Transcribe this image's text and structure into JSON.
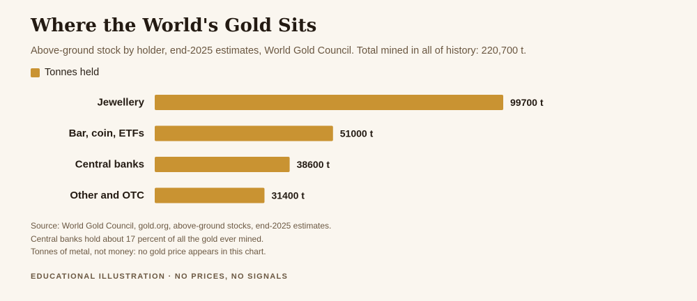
{
  "title": "Where the World's Gold Sits",
  "subtitle": "Above-ground stock by holder, end-2025 estimates, World Gold Council. Total mined in all of history: 220,700 t.",
  "legend": {
    "label": "Tonnes held",
    "color": "#c99332"
  },
  "notes": [
    "Source: World Gold Council, gold.org, above-ground stocks, end-2025 estimates.",
    "Central banks hold about 17 percent of all the gold ever mined.",
    "Tonnes of metal, not money: no gold price appears in this chart."
  ],
  "footer": "EDUCATIONAL ILLUSTRATION · NO PRICES, NO SIGNALS",
  "chart_data": {
    "type": "bar",
    "orientation": "horizontal",
    "categories": [
      "Jewellery",
      "Bar, coin, ETFs",
      "Central banks",
      "Other and OTC"
    ],
    "series": [
      {
        "name": "Tonnes held",
        "values": [
          99700,
          51000,
          38600,
          31400
        ],
        "color": "#c99332"
      }
    ],
    "value_labels": [
      "99700 t",
      "51000 t",
      "38600 t",
      "31400 t"
    ],
    "xlim": [
      0,
      99700
    ],
    "grid": false,
    "legend_position": "top-left"
  }
}
